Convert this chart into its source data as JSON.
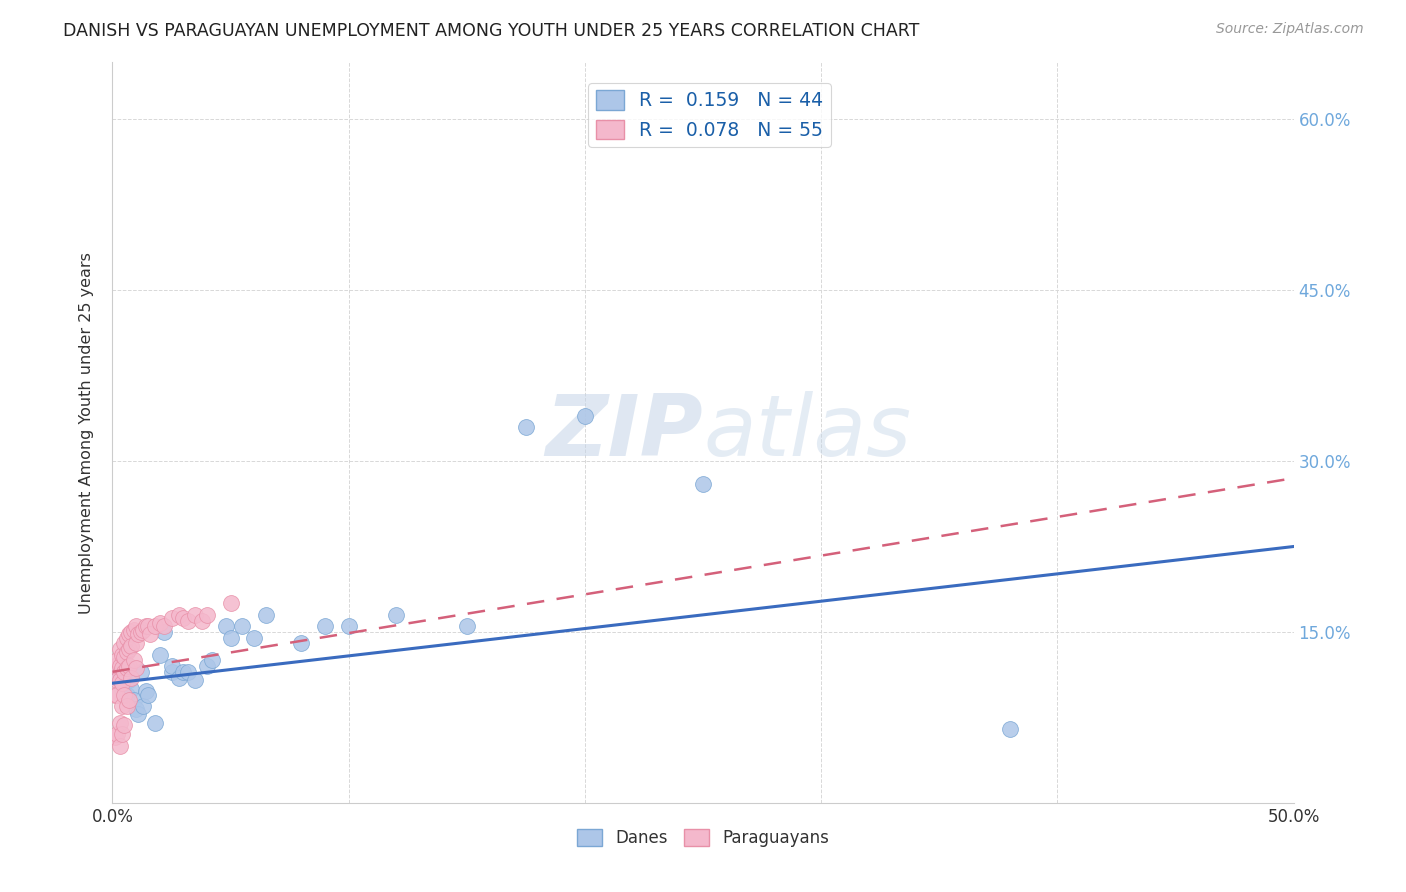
{
  "title": "DANISH VS PARAGUAYAN UNEMPLOYMENT AMONG YOUTH UNDER 25 YEARS CORRELATION CHART",
  "source": "Source: ZipAtlas.com",
  "ylabel": "Unemployment Among Youth under 25 years",
  "xlim": [
    0.0,
    0.5
  ],
  "ylim": [
    0.0,
    0.65
  ],
  "xticks": [
    0.0,
    0.1,
    0.2,
    0.3,
    0.4,
    0.5
  ],
  "xtick_labels": [
    "0.0%",
    "",
    "",
    "",
    "",
    "50.0%"
  ],
  "yticks": [
    0.0,
    0.15,
    0.3,
    0.45,
    0.6
  ],
  "ytick_labels_right": [
    "",
    "15.0%",
    "30.0%",
    "45.0%",
    "60.0%"
  ],
  "watermark_zip": "ZIP",
  "watermark_atlas": "atlas",
  "legend_r_danes": "R =  0.159",
  "legend_n_danes": "N = 44",
  "legend_r_para": "R =  0.078",
  "legend_n_para": "N = 55",
  "danes_color": "#adc6e8",
  "para_color": "#f4b8cc",
  "danes_edge_color": "#7ba7d4",
  "para_edge_color": "#e890a8",
  "danes_line_color": "#3a6bbf",
  "para_line_color": "#d4607a",
  "grid_color": "#d8d8d8",
  "background_color": "#ffffff",
  "right_tick_color": "#6fa8dc",
  "legend_text_color": "#1a5fa8",
  "danes_x": [
    0.001,
    0.002,
    0.003,
    0.003,
    0.004,
    0.004,
    0.005,
    0.005,
    0.006,
    0.006,
    0.007,
    0.008,
    0.009,
    0.01,
    0.011,
    0.012,
    0.013,
    0.014,
    0.015,
    0.018,
    0.02,
    0.022,
    0.025,
    0.025,
    0.028,
    0.03,
    0.032,
    0.035,
    0.04,
    0.042,
    0.048,
    0.05,
    0.055,
    0.06,
    0.065,
    0.08,
    0.09,
    0.1,
    0.12,
    0.15,
    0.175,
    0.2,
    0.38,
    0.25
  ],
  "danes_y": [
    0.113,
    0.11,
    0.115,
    0.108,
    0.12,
    0.1,
    0.112,
    0.105,
    0.095,
    0.118,
    0.108,
    0.1,
    0.09,
    0.082,
    0.078,
    0.115,
    0.085,
    0.098,
    0.095,
    0.07,
    0.13,
    0.15,
    0.115,
    0.12,
    0.11,
    0.115,
    0.115,
    0.108,
    0.12,
    0.125,
    0.155,
    0.145,
    0.155,
    0.145,
    0.165,
    0.14,
    0.155,
    0.155,
    0.165,
    0.155,
    0.33,
    0.34,
    0.065,
    0.28
  ],
  "para_x": [
    0.001,
    0.001,
    0.001,
    0.002,
    0.002,
    0.002,
    0.002,
    0.003,
    0.003,
    0.003,
    0.003,
    0.003,
    0.004,
    0.004,
    0.004,
    0.004,
    0.004,
    0.005,
    0.005,
    0.005,
    0.005,
    0.005,
    0.006,
    0.006,
    0.006,
    0.006,
    0.007,
    0.007,
    0.007,
    0.007,
    0.008,
    0.008,
    0.008,
    0.009,
    0.009,
    0.01,
    0.01,
    0.01,
    0.011,
    0.012,
    0.013,
    0.014,
    0.015,
    0.016,
    0.018,
    0.02,
    0.022,
    0.025,
    0.028,
    0.03,
    0.032,
    0.035,
    0.038,
    0.04,
    0.05
  ],
  "para_y": [
    0.12,
    0.095,
    0.058,
    0.125,
    0.108,
    0.095,
    0.06,
    0.135,
    0.12,
    0.108,
    0.07,
    0.05,
    0.13,
    0.118,
    0.105,
    0.085,
    0.06,
    0.14,
    0.128,
    0.115,
    0.095,
    0.068,
    0.145,
    0.132,
    0.118,
    0.085,
    0.148,
    0.135,
    0.12,
    0.09,
    0.15,
    0.138,
    0.11,
    0.152,
    0.125,
    0.155,
    0.14,
    0.118,
    0.148,
    0.15,
    0.152,
    0.155,
    0.155,
    0.148,
    0.155,
    0.158,
    0.155,
    0.162,
    0.165,
    0.162,
    0.16,
    0.165,
    0.16,
    0.165,
    0.175
  ]
}
